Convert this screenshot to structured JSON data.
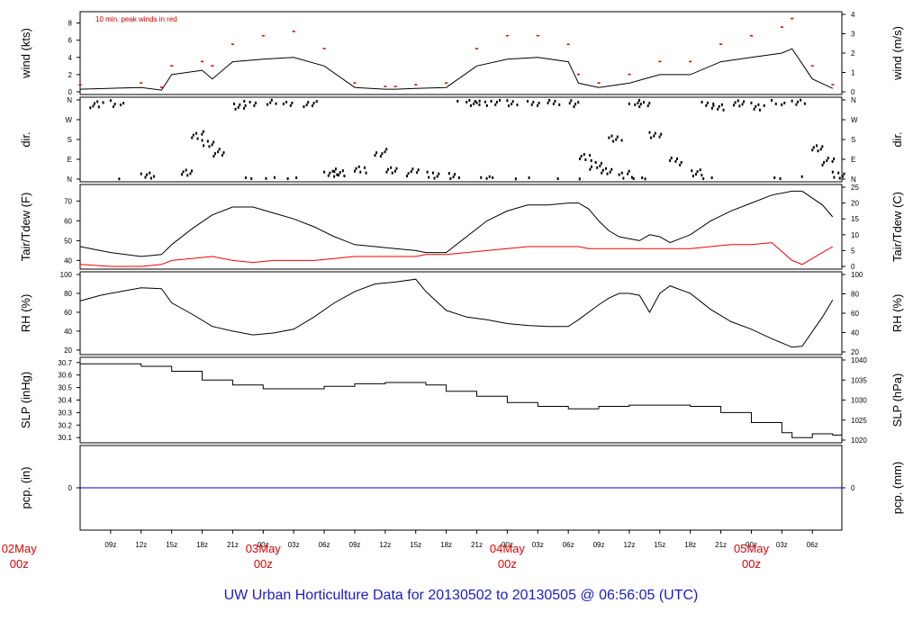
{
  "chart_data": {
    "title": "UW Urban Horticulture Data for 20130502  to  20130505 @ 06:56:05  (UTC)",
    "note": "10 min. peak winds in red",
    "x_hour_labels": [
      "09z",
      "12z",
      "15z",
      "18z",
      "21z",
      "00z",
      "03z",
      "06z",
      "09z",
      "12z",
      "15z",
      "18z",
      "21z",
      "00z",
      "03z",
      "06z",
      "09z",
      "12z",
      "15z",
      "18z",
      "21z",
      "00z",
      "03z",
      "06z"
    ],
    "day_labels": [
      {
        "date": "02May",
        "hour": "00z"
      },
      {
        "date": "03May",
        "hour": "00z"
      },
      {
        "date": "04May",
        "hour": "00z"
      },
      {
        "date": "05May",
        "hour": "00z"
      }
    ],
    "panels": [
      {
        "id": "wind",
        "type": "line",
        "ylabel": "wind (kts)",
        "ylabel_right": "wind (m/s)",
        "left_ticks": [
          "0",
          "2",
          "4",
          "6",
          "8"
        ],
        "right_ticks": [
          "0",
          "1",
          "2",
          "3",
          "4"
        ],
        "ylim": [
          0,
          9
        ],
        "series": [
          {
            "color": "#000000",
            "x_hours": [
              6,
              12,
              14,
              15,
              18,
              19,
              21,
              24,
              27,
              30,
              33,
              36,
              37,
              39,
              42,
              45,
              48,
              51,
              54,
              55,
              57,
              60,
              63,
              66,
              69,
              72,
              75,
              76,
              78,
              80
            ],
            "values": [
              0.3,
              0.5,
              0.2,
              2.0,
              2.5,
              1.5,
              3.5,
              3.8,
              4.0,
              3.0,
              0.5,
              0.3,
              0.3,
              0.4,
              0.5,
              3.0,
              3.8,
              4.0,
              3.5,
              1.0,
              0.5,
              1.0,
              2.0,
              2.0,
              3.5,
              4.0,
              4.5,
              5.0,
              1.5,
              0.4
            ]
          },
          {
            "color": "#dd0000",
            "x_hours": [
              6,
              12,
              14,
              15,
              18,
              19,
              21,
              24,
              27,
              30,
              33,
              36,
              37,
              39,
              42,
              45,
              48,
              51,
              54,
              55,
              57,
              60,
              63,
              66,
              69,
              72,
              75,
              76,
              78,
              80
            ],
            "values": [
              0.8,
              1.0,
              0.5,
              3.0,
              3.5,
              3.0,
              5.5,
              6.5,
              7.0,
              5.0,
              1.0,
              0.6,
              0.6,
              0.8,
              1.0,
              5.0,
              6.5,
              6.5,
              5.5,
              2.0,
              1.0,
              2.0,
              3.5,
              3.5,
              5.5,
              6.5,
              7.5,
              8.5,
              3.0,
              0.8
            ]
          }
        ]
      },
      {
        "id": "dir",
        "type": "scatter",
        "ylabel": "dir.",
        "ylabel_right": "dir.",
        "left_ticks": [
          "N",
          "E",
          "S",
          "W",
          "N"
        ],
        "right_ticks": [
          "N",
          "E",
          "S",
          "W",
          "N"
        ],
        "ylim": [
          0,
          360
        ],
        "series": [
          {
            "color": "#000000",
            "x_hours": [
              7,
              9,
              12,
              16,
              17,
              18,
              19,
              21,
              22,
              24,
              26,
              28,
              30,
              31,
              33,
              35,
              36,
              38,
              40,
              42,
              44,
              45,
              46,
              48,
              50,
              52,
              54,
              55,
              56,
              57,
              58,
              59,
              60,
              61,
              62,
              64,
              66,
              67,
              68,
              70,
              72,
              74,
              76,
              78,
              79,
              80
            ],
            "values": [
              340,
              345,
              20,
              25,
              200,
              160,
              120,
              330,
              350,
              355,
              350,
              345,
              20,
              30,
              40,
              120,
              40,
              30,
              20,
              10,
              350,
              355,
              350,
              345,
              350,
              350,
              345,
              100,
              60,
              40,
              180,
              20,
              350,
              345,
              200,
              80,
              30,
              350,
              330,
              340,
              330,
              350,
              355,
              140,
              80,
              20
            ]
          }
        ]
      },
      {
        "id": "temp",
        "type": "line",
        "ylabel": "Tair/Tdew (F)",
        "ylabel_right": "Tair/Tdew (C)",
        "left_ticks": [
          "40",
          "50",
          "60",
          "70"
        ],
        "right_ticks": [
          "0",
          "5",
          "10",
          "15",
          "20",
          "25"
        ],
        "ylim": [
          37,
          77
        ],
        "series": [
          {
            "name": "Tair",
            "color": "#000000",
            "x_hours": [
              6,
              9,
              12,
              14,
              15,
              17,
              19,
              21,
              23,
              25,
              27,
              29,
              31,
              33,
              35,
              37,
              39,
              40,
              42,
              44,
              46,
              48,
              50,
              52,
              54,
              55,
              56,
              57,
              58,
              59,
              60,
              61,
              62,
              63,
              64,
              66,
              68,
              70,
              72,
              74,
              76,
              77,
              79,
              80
            ],
            "values": [
              47,
              44,
              42,
              43,
              48,
              56,
              63,
              67,
              67,
              64,
              61,
              57,
              52,
              48,
              47,
              46,
              45,
              44,
              44,
              52,
              60,
              65,
              68,
              68,
              69,
              69,
              66,
              60,
              55,
              52,
              51,
              50,
              53,
              52,
              49,
              53,
              60,
              65,
              69,
              73,
              75,
              75,
              68,
              62
            ]
          },
          {
            "name": "Tdew",
            "color": "#ee0000",
            "x_hours": [
              6,
              9,
              12,
              14,
              15,
              17,
              19,
              21,
              23,
              25,
              27,
              29,
              31,
              33,
              35,
              37,
              39,
              40,
              42,
              44,
              46,
              48,
              50,
              52,
              54,
              55,
              56,
              57,
              58,
              59,
              60,
              61,
              62,
              63,
              64,
              66,
              68,
              70,
              72,
              74,
              76,
              77,
              79,
              80
            ],
            "values": [
              38,
              37,
              37,
              38,
              40,
              41,
              42,
              40,
              39,
              40,
              40,
              40,
              41,
              42,
              42,
              42,
              42,
              43,
              43,
              44,
              45,
              46,
              47,
              47,
              47,
              47,
              46,
              46,
              46,
              46,
              46,
              46,
              46,
              46,
              46,
              46,
              47,
              48,
              48,
              49,
              40,
              38,
              44,
              47
            ]
          }
        ]
      },
      {
        "id": "rh",
        "type": "line",
        "ylabel": "RH (%)",
        "ylabel_right": "RH (%)",
        "left_ticks": [
          "20",
          "40",
          "60",
          "80",
          "100"
        ],
        "right_ticks": [
          "20",
          "40",
          "60",
          "80",
          "100"
        ],
        "ylim": [
          18,
          100
        ],
        "series": [
          {
            "color": "#000000",
            "x_hours": [
              6,
              8,
              10,
              12,
              14,
              15,
              17,
              19,
              21,
              23,
              25,
              27,
              29,
              31,
              33,
              35,
              37,
              39,
              40,
              42,
              44,
              46,
              48,
              50,
              52,
              54,
              55,
              57,
              58,
              59,
              60,
              61,
              62,
              63,
              64,
              66,
              68,
              70,
              72,
              74,
              76,
              77,
              79,
              80
            ],
            "values": [
              72,
              78,
              82,
              86,
              85,
              70,
              58,
              45,
              40,
              36,
              38,
              42,
              55,
              70,
              82,
              90,
              92,
              95,
              82,
              62,
              55,
              52,
              48,
              46,
              45,
              45,
              52,
              68,
              75,
              80,
              80,
              78,
              60,
              80,
              88,
              80,
              63,
              50,
              42,
              32,
              23,
              24,
              55,
              73
            ]
          }
        ]
      },
      {
        "id": "slp",
        "type": "step",
        "ylabel": "SLP (inHg)",
        "ylabel_right": "SLP (hPa)",
        "left_ticks": [
          "30.1",
          "30.2",
          "30.3",
          "30.4",
          "30.5",
          "30.6",
          "30.7"
        ],
        "right_ticks": [
          "1020",
          "1025",
          "1030",
          "1035",
          "1040"
        ],
        "ylim": [
          30.08,
          30.72
        ],
        "series": [
          {
            "color": "#000000",
            "x_hours": [
              6,
              12,
              15,
              18,
              21,
              24,
              27,
              30,
              33,
              36,
              39,
              40,
              42,
              45,
              48,
              51,
              54,
              57,
              60,
              63,
              66,
              69,
              72,
              75,
              76,
              78,
              80
            ],
            "values": [
              30.69,
              30.67,
              30.63,
              30.56,
              30.52,
              30.49,
              30.49,
              30.51,
              30.53,
              30.54,
              30.54,
              30.52,
              30.47,
              30.43,
              30.38,
              30.35,
              30.33,
              30.35,
              30.36,
              30.36,
              30.35,
              30.3,
              30.22,
              30.14,
              30.1,
              30.13,
              30.12
            ]
          }
        ]
      },
      {
        "id": "pcp",
        "type": "line",
        "ylabel": "pcp. (in)",
        "ylabel_right": "pcp. (mm)",
        "left_ticks": [
          "0"
        ],
        "right_ticks": [
          "0"
        ],
        "ylim": [
          -0.5,
          0.5
        ],
        "series": [
          {
            "color": "#0000cc",
            "x_hours": [
              6,
              80.9
            ],
            "values": [
              0,
              0
            ]
          }
        ]
      }
    ]
  }
}
